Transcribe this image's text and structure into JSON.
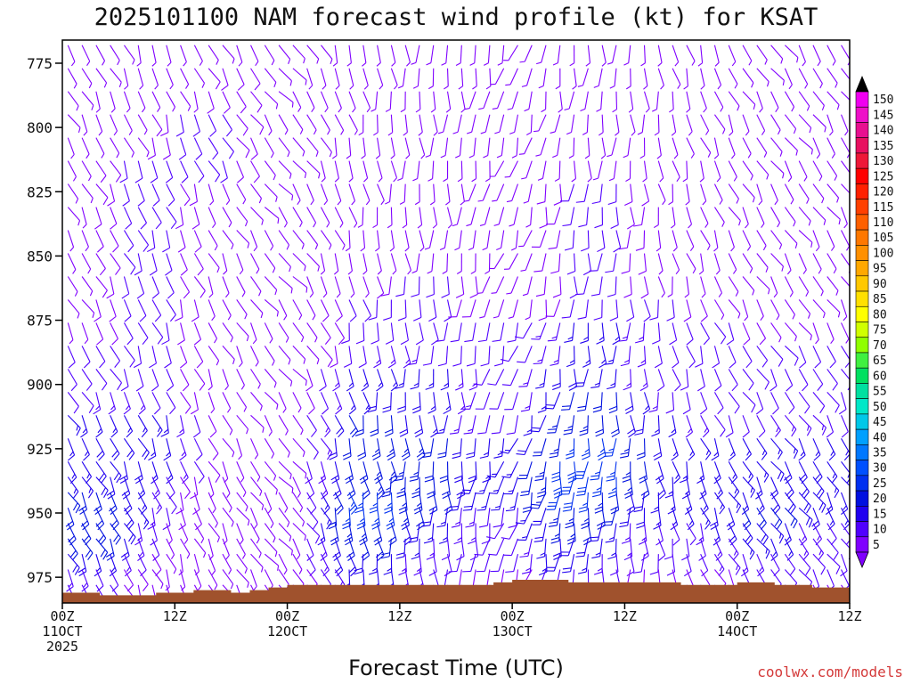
{
  "chart_data": {
    "type": "wind-barb-profile",
    "title": "2025101100 NAM forecast wind profile (kt) for KSAT",
    "xlabel": "Forecast Time (UTC)",
    "ylabel": "",
    "credit": "coolwx.com/models",
    "y_reversed": true,
    "ylim": [
      985,
      766
    ],
    "y_ticks": [
      775,
      800,
      825,
      850,
      875,
      900,
      925,
      950,
      975
    ],
    "xlim": [
      0,
      84
    ],
    "x_ticks": [
      {
        "hour": 0,
        "l1": "00Z",
        "l2": "11OCT",
        "l3": "2025"
      },
      {
        "hour": 12,
        "l1": "12Z",
        "l2": "",
        "l3": ""
      },
      {
        "hour": 24,
        "l1": "00Z",
        "l2": "12OCT",
        "l3": ""
      },
      {
        "hour": 36,
        "l1": "12Z",
        "l2": "",
        "l3": ""
      },
      {
        "hour": 48,
        "l1": "00Z",
        "l2": "13OCT",
        "l3": ""
      },
      {
        "hour": 60,
        "l1": "12Z",
        "l2": "",
        "l3": ""
      },
      {
        "hour": 72,
        "l1": "00Z",
        "l2": "14OCT",
        "l3": ""
      },
      {
        "hour": 84,
        "l1": "12Z",
        "l2": "",
        "l3": ""
      }
    ],
    "barb_levels_mb": [
      768,
      777,
      786,
      795,
      804,
      813,
      822,
      831,
      840,
      849,
      858,
      867,
      876,
      885,
      894,
      903,
      912,
      921,
      930,
      936,
      942,
      948,
      954,
      960,
      966,
      972,
      978
    ],
    "surface_pressure_mb": [
      [
        0,
        981
      ],
      [
        4,
        982
      ],
      [
        10,
        981
      ],
      [
        14,
        980
      ],
      [
        18,
        981
      ],
      [
        20,
        980
      ],
      [
        22,
        979
      ],
      [
        24,
        978
      ],
      [
        30,
        978
      ],
      [
        40,
        978
      ],
      [
        46,
        977
      ],
      [
        48,
        976
      ],
      [
        50,
        976
      ],
      [
        54,
        977
      ],
      [
        62,
        977
      ],
      [
        66,
        978
      ],
      [
        72,
        977
      ],
      [
        76,
        978
      ],
      [
        80,
        979
      ],
      [
        84,
        979
      ]
    ],
    "surface_fill_color": "#a0522d",
    "wind_data": [
      {
        "hour": 0,
        "dir": 150,
        "speeds": [
          5,
          5,
          5,
          5,
          5,
          5,
          5,
          5,
          5,
          5,
          5,
          5,
          5,
          10,
          10,
          10,
          15,
          15,
          15,
          15,
          20,
          20,
          20,
          20,
          20,
          15,
          10
        ]
      },
      {
        "hour": 6,
        "dir": 155,
        "speeds": [
          5,
          5,
          5,
          5,
          5,
          10,
          10,
          10,
          10,
          10,
          10,
          10,
          10,
          10,
          10,
          15,
          15,
          20,
          20,
          20,
          20,
          20,
          20,
          20,
          15,
          10,
          10
        ]
      },
      {
        "hour": 12,
        "dir": 160,
        "speeds": [
          5,
          5,
          5,
          10,
          10,
          10,
          10,
          10,
          10,
          10,
          10,
          10,
          10,
          10,
          10,
          10,
          15,
          15,
          15,
          10,
          10,
          10,
          5,
          5,
          5,
          5,
          5
        ]
      },
      {
        "hour": 18,
        "dir": 150,
        "speeds": [
          5,
          10,
          10,
          10,
          10,
          10,
          5,
          5,
          5,
          5,
          5,
          5,
          5,
          5,
          5,
          5,
          5,
          5,
          5,
          5,
          5,
          5,
          5,
          5,
          5,
          5,
          5
        ]
      },
      {
        "hour": 24,
        "dir": 140,
        "speeds": [
          5,
          5,
          5,
          5,
          5,
          5,
          5,
          5,
          5,
          5,
          5,
          5,
          5,
          5,
          5,
          5,
          5,
          5,
          5,
          5,
          5,
          5,
          5,
          5,
          5,
          5,
          5
        ]
      },
      {
        "hour": 30,
        "dir": 165,
        "speeds": [
          5,
          5,
          5,
          5,
          5,
          5,
          5,
          5,
          5,
          5,
          5,
          10,
          10,
          10,
          15,
          15,
          20,
          20,
          20,
          20,
          25,
          25,
          25,
          20,
          20,
          15,
          15
        ]
      },
      {
        "hour": 36,
        "dir": 175,
        "speeds": [
          5,
          5,
          5,
          5,
          5,
          5,
          5,
          5,
          5,
          5,
          10,
          10,
          10,
          15,
          15,
          20,
          20,
          25,
          25,
          25,
          25,
          25,
          20,
          20,
          15,
          15,
          10
        ]
      },
      {
        "hour": 42,
        "dir": 180,
        "speeds": [
          5,
          5,
          5,
          5,
          5,
          5,
          5,
          5,
          5,
          5,
          10,
          10,
          10,
          10,
          15,
          15,
          15,
          20,
          20,
          20,
          20,
          15,
          15,
          10,
          10,
          10,
          5
        ]
      },
      {
        "hour": 48,
        "dir": 200,
        "speeds": [
          5,
          5,
          5,
          5,
          5,
          5,
          5,
          5,
          5,
          5,
          5,
          5,
          10,
          10,
          10,
          10,
          10,
          15,
          15,
          15,
          15,
          10,
          10,
          10,
          10,
          5,
          5
        ]
      },
      {
        "hour": 54,
        "dir": 185,
        "speeds": [
          5,
          5,
          5,
          5,
          5,
          5,
          10,
          10,
          10,
          10,
          10,
          10,
          15,
          15,
          20,
          20,
          25,
          25,
          30,
          30,
          30,
          25,
          25,
          20,
          20,
          15,
          10
        ]
      },
      {
        "hour": 60,
        "dir": 180,
        "speeds": [
          5,
          5,
          5,
          5,
          5,
          5,
          10,
          10,
          10,
          10,
          10,
          10,
          15,
          15,
          15,
          20,
          20,
          25,
          25,
          25,
          20,
          20,
          15,
          15,
          10,
          10,
          5
        ]
      },
      {
        "hour": 66,
        "dir": 165,
        "speeds": [
          5,
          5,
          5,
          5,
          5,
          5,
          5,
          5,
          5,
          5,
          5,
          10,
          10,
          10,
          10,
          10,
          15,
          15,
          15,
          15,
          15,
          15,
          10,
          10,
          10,
          5,
          5
        ]
      },
      {
        "hour": 72,
        "dir": 150,
        "speeds": [
          5,
          5,
          5,
          5,
          5,
          5,
          5,
          5,
          5,
          5,
          5,
          5,
          10,
          10,
          10,
          10,
          10,
          15,
          15,
          15,
          15,
          20,
          20,
          15,
          15,
          10,
          10
        ]
      },
      {
        "hour": 78,
        "dir": 145,
        "speeds": [
          5,
          5,
          5,
          5,
          5,
          5,
          5,
          5,
          5,
          5,
          5,
          5,
          5,
          10,
          10,
          10,
          15,
          15,
          20,
          20,
          20,
          20,
          15,
          15,
          10,
          10,
          10
        ]
      },
      {
        "hour": 84,
        "dir": 150,
        "speeds": [
          5,
          5,
          5,
          5,
          5,
          5,
          5,
          5,
          5,
          5,
          5,
          5,
          5,
          10,
          10,
          10,
          10,
          15,
          15,
          15,
          15,
          15,
          10,
          10,
          10,
          10,
          5
        ]
      }
    ],
    "colorbar": {
      "labels": [
        "150",
        "145",
        "140",
        "135",
        "130",
        "125",
        "120",
        "115",
        "110",
        "105",
        "100",
        "95",
        "90",
        "85",
        "80",
        "75",
        "70",
        "65",
        "60",
        "55",
        "50",
        "45",
        "40",
        "35",
        "30",
        "25",
        "20",
        "15",
        "10",
        "5"
      ],
      "colors": [
        "#f000f0",
        "#ee10c8",
        "#e81090",
        "#e81060",
        "#ee1838",
        "#ff0000",
        "#ff2000",
        "#ff4000",
        "#ff6000",
        "#ff7800",
        "#ff9000",
        "#ffa800",
        "#ffc800",
        "#ffe000",
        "#ffff00",
        "#d0ff00",
        "#90ff00",
        "#40f040",
        "#00e060",
        "#00e0a0",
        "#00e8c8",
        "#00c8e8",
        "#00a0ff",
        "#0078ff",
        "#0050ff",
        "#0030f0",
        "#0010e0",
        "#2000f0",
        "#5000ff",
        "#8000ff"
      ],
      "top_arrow_color": "#000000",
      "bottom_arrow_color": "#8000ff"
    }
  }
}
